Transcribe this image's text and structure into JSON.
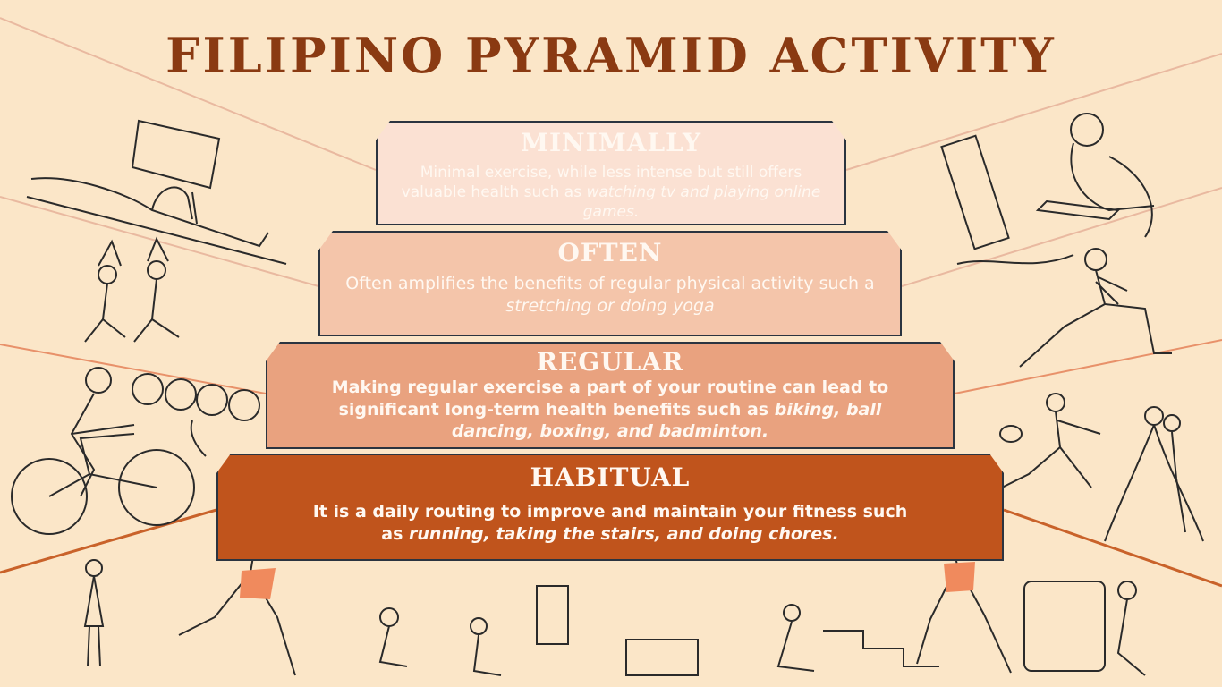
{
  "title": "FILIPINO PYRAMID ACTIVITY",
  "colors": {
    "background": "#fbe6c8",
    "title": "#8a3a12",
    "minimally": "#fbe1d3",
    "often": "#f4c5aa",
    "regular": "#e9a27f",
    "habitual": "#c0541c",
    "text": "#fff8f1"
  },
  "tiers": [
    {
      "name": "MINIMALLY",
      "text": "Minimal exercise, while less intense but still offers valuable health such as ",
      "examples": "watching tv and  playing online games."
    },
    {
      "name": "OFTEN",
      "text": "Often amplifies the benefits of regular physical activity such a ",
      "examples": "stretching or doing yoga"
    },
    {
      "name": "REGULAR",
      "text": "Making regular exercise a part of your routine can lead to significant long-term health benefits such as ",
      "examples": "biking, ball dancing, boxing, and badminton."
    },
    {
      "name": "HABITUAL",
      "text": "It is a daily routing to improve and maintain your fitness such as ",
      "examples": "running, taking the stairs, and doing chores."
    }
  ],
  "illustrations": [
    "tv-watching-sketch",
    "gaming-sketch",
    "yoga-sketch",
    "stretching-sketch",
    "biking-sketch",
    "balls-sketch",
    "badminton-sketch",
    "ballroom-dancing-sketch",
    "runner-left-sketch",
    "runner-right-sketch",
    "chores-sketch"
  ]
}
